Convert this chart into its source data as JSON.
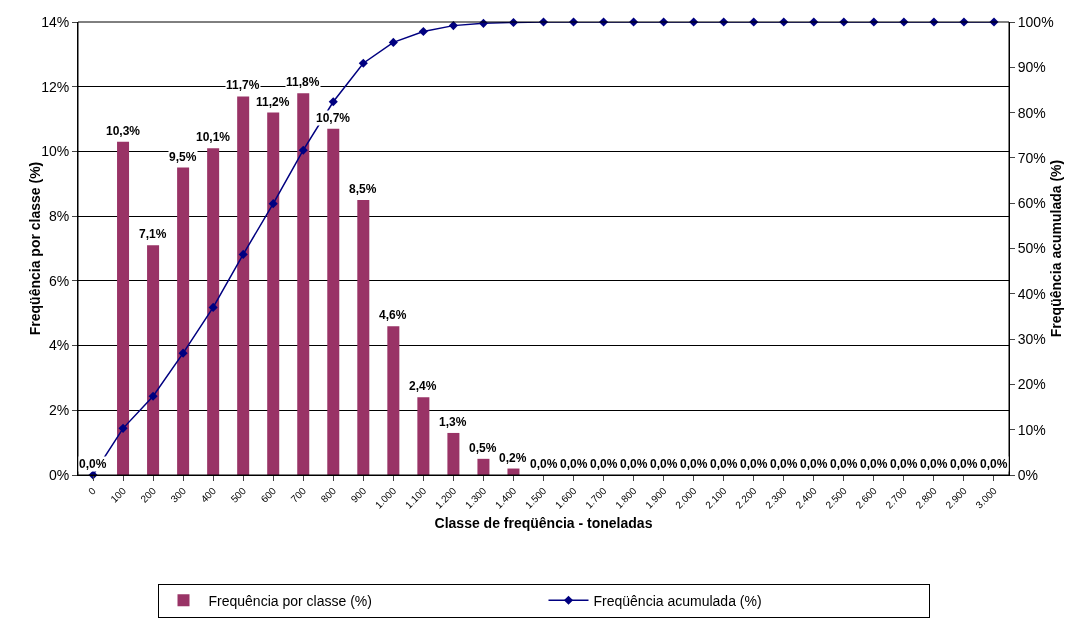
{
  "chart_data": {
    "type": "bar",
    "xlabel": "Classe de freqüência - toneladas",
    "ylabel": "Freqüência por classe (%)",
    "y2label": "Freqüência acumulada (%)",
    "categories": [
      "0",
      "100",
      "200",
      "300",
      "400",
      "500",
      "600",
      "700",
      "800",
      "900",
      "1.000",
      "1.100",
      "1.200",
      "1.300",
      "1.400",
      "1.500",
      "1.600",
      "1.700",
      "1.800",
      "1.900",
      "2.000",
      "2.100",
      "2.200",
      "2.300",
      "2.400",
      "2.500",
      "2.600",
      "2.700",
      "2.800",
      "2.900",
      "3.000"
    ],
    "series": [
      {
        "name": "Frequência por classe (%)",
        "color": "#993366",
        "values": [
          0,
          10.3,
          7.1,
          9.5,
          10.1,
          11.7,
          11.2,
          11.8,
          10.7,
          8.5,
          4.6,
          2.4,
          1.3,
          0.5,
          0.2,
          0.0,
          0,
          0,
          0,
          0,
          0,
          0,
          0,
          0,
          0,
          0,
          0,
          0,
          0,
          0,
          0
        ],
        "value_labels": [
          "0,0%",
          "10,3%",
          "7,1%",
          "9,5%",
          "10,1%",
          "11,7%",
          "11,2%",
          "11,8%",
          "10,7%",
          "8,5%",
          "4,6%",
          "2,4%",
          "1,3%",
          "0,5%",
          "0,2%",
          "0,0%",
          "0,0%",
          "0,0%",
          "0,0%",
          "0,0%",
          "0,0%",
          "0,0%",
          "0,0%",
          "0,0%",
          "0,0%",
          "0,0%",
          "0,0%",
          "0,0%",
          "0,0%",
          "0,0%",
          "0,0%"
        ]
      },
      {
        "name": "Freqüência acumulada (%)",
        "type": "line",
        "axis": "y2",
        "color": "#000080",
        "marker": "diamond",
        "values": [
          0,
          10.3,
          17.4,
          26.9,
          37.0,
          48.7,
          59.9,
          71.7,
          82.4,
          90.9,
          95.5,
          97.9,
          99.2,
          99.7,
          99.9,
          100,
          100,
          100,
          100,
          100,
          100,
          100,
          100,
          100,
          100,
          100,
          100,
          100,
          100,
          100,
          100
        ]
      }
    ],
    "ylim": [
      0,
      14
    ],
    "yticks": [
      {
        "value": 0,
        "label": "0%"
      },
      {
        "value": 2,
        "label": "2%"
      },
      {
        "value": 4,
        "label": "4%"
      },
      {
        "value": 6,
        "label": "6%"
      },
      {
        "value": 8,
        "label": "8%"
      },
      {
        "value": 10,
        "label": "10%"
      },
      {
        "value": 12,
        "label": "12%"
      },
      {
        "value": 14,
        "label": "14%"
      }
    ],
    "y2lim": [
      0,
      100
    ],
    "y2ticks": [
      {
        "value": 0,
        "label": "0%"
      },
      {
        "value": 10,
        "label": "10%"
      },
      {
        "value": 20,
        "label": "20%"
      },
      {
        "value": 30,
        "label": "30%"
      },
      {
        "value": 40,
        "label": "40%"
      },
      {
        "value": 50,
        "label": "50%"
      },
      {
        "value": 60,
        "label": "60%"
      },
      {
        "value": 70,
        "label": "70%"
      },
      {
        "value": 80,
        "label": "80%"
      },
      {
        "value": 90,
        "label": "90%"
      },
      {
        "value": 100,
        "label": "100%"
      }
    ],
    "grid": "y",
    "legend": "bottom"
  }
}
